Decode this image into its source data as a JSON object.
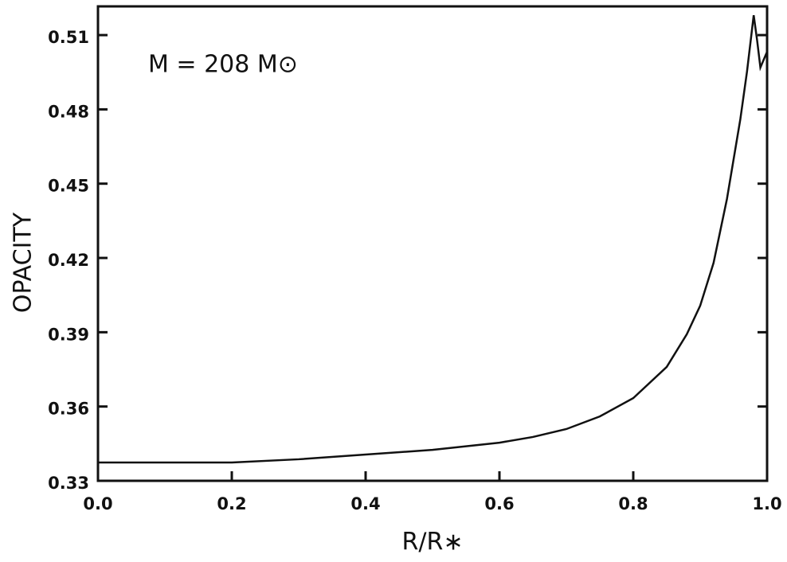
{
  "chart_data": {
    "type": "line",
    "annotation": "M = 208 M⊙",
    "x_label": "R/R∗",
    "y_label": "OPACITY",
    "x": [
      0,
      0.1,
      0.2,
      0.3,
      0.4,
      0.5,
      0.6,
      0.65,
      0.7,
      0.75,
      0.8,
      0.85,
      0.88,
      0.9,
      0.92,
      0.94,
      0.96,
      0.97,
      0.98,
      0.985,
      0.99,
      1.0
    ],
    "series": [
      {
        "color": "#111111",
        "values": [
          0.3374,
          0.3374,
          0.3374,
          0.3387,
          0.3406,
          0.3425,
          0.3454,
          0.3477,
          0.3509,
          0.356,
          0.3634,
          0.376,
          0.3892,
          0.4007,
          0.418,
          0.4438,
          0.476,
          0.4953,
          0.518,
          0.5081,
          0.4969,
          0.5033
        ]
      }
    ],
    "xlim": [
      0,
      1
    ],
    "xticks": [
      {
        "value": 0,
        "label": "0.0"
      },
      0.2,
      0.4,
      0.6,
      0.8,
      {
        "value": 1,
        "label": "1.0"
      }
    ],
    "ylim": [
      0.33,
      0.5216
    ],
    "yticks": [
      0.33,
      0.36,
      0.39,
      0.42,
      0.45,
      0.48,
      0.51
    ]
  }
}
